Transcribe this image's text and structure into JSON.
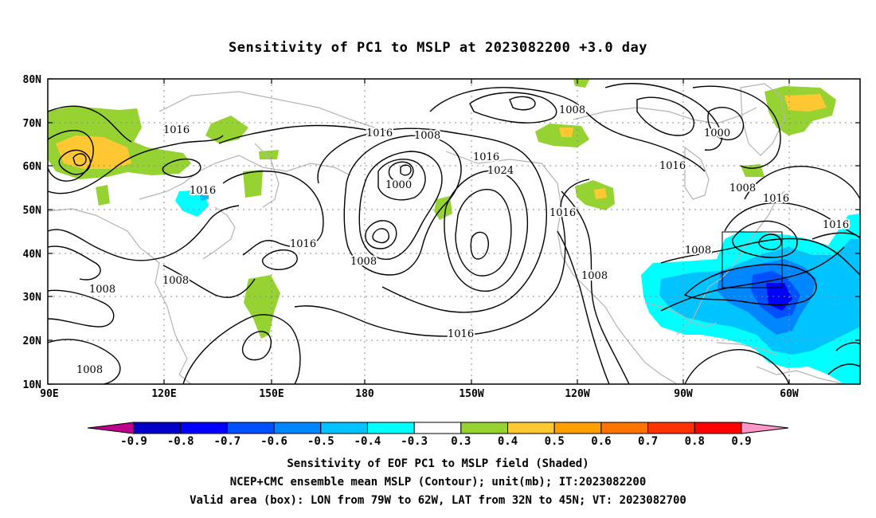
{
  "title": "Sensitivity of PC1 to MSLP at 2023082200 +3.0 day",
  "lat_labels": [
    "80N",
    "70N",
    "60N",
    "50N",
    "40N",
    "30N",
    "20N",
    "10N"
  ],
  "lon_labels": [
    "90E",
    "120E",
    "150E",
    "180",
    "150W",
    "120W",
    "90W",
    "60W"
  ],
  "contour_labels": [
    "1016",
    "1008",
    "1016",
    "1008",
    "1016",
    "1000",
    "1024",
    "1008",
    "1016",
    "1000",
    "1016",
    "1008",
    "1016",
    "1016",
    "1016",
    "1008",
    "1016",
    "1008",
    "1008",
    "1008",
    "1008",
    "1016",
    "1008"
  ],
  "colorbar": {
    "labels": [
      "-0.9",
      "-0.8",
      "-0.7",
      "-0.6",
      "-0.5",
      "-0.4",
      "-0.3",
      "0.3",
      "0.4",
      "0.5",
      "0.6",
      "0.7",
      "0.8",
      "0.9"
    ],
    "colors": [
      "#c0008c",
      "#0000c8",
      "#0000ff",
      "#0050ff",
      "#0087ff",
      "#00c3ff",
      "#00ffff",
      "#ffffff",
      "#96d232",
      "#ffc832",
      "#ffa000",
      "#ff7300",
      "#ff3200",
      "#ff0000",
      "#ff96c8"
    ]
  },
  "valid_box": {
    "lon_west": -79,
    "lon_east": -62,
    "lat_south": 32,
    "lat_north": 45
  },
  "captions": [
    "Sensitivity of EOF PC1 to MSLP field (Shaded)",
    "NCEP+CMC ensemble mean MSLP (Contour); unit(mb); IT:2023082200",
    "Valid area (box): LON from 79W to 62W, LAT from 32N to 45N; VT: 2023082700"
  ]
}
